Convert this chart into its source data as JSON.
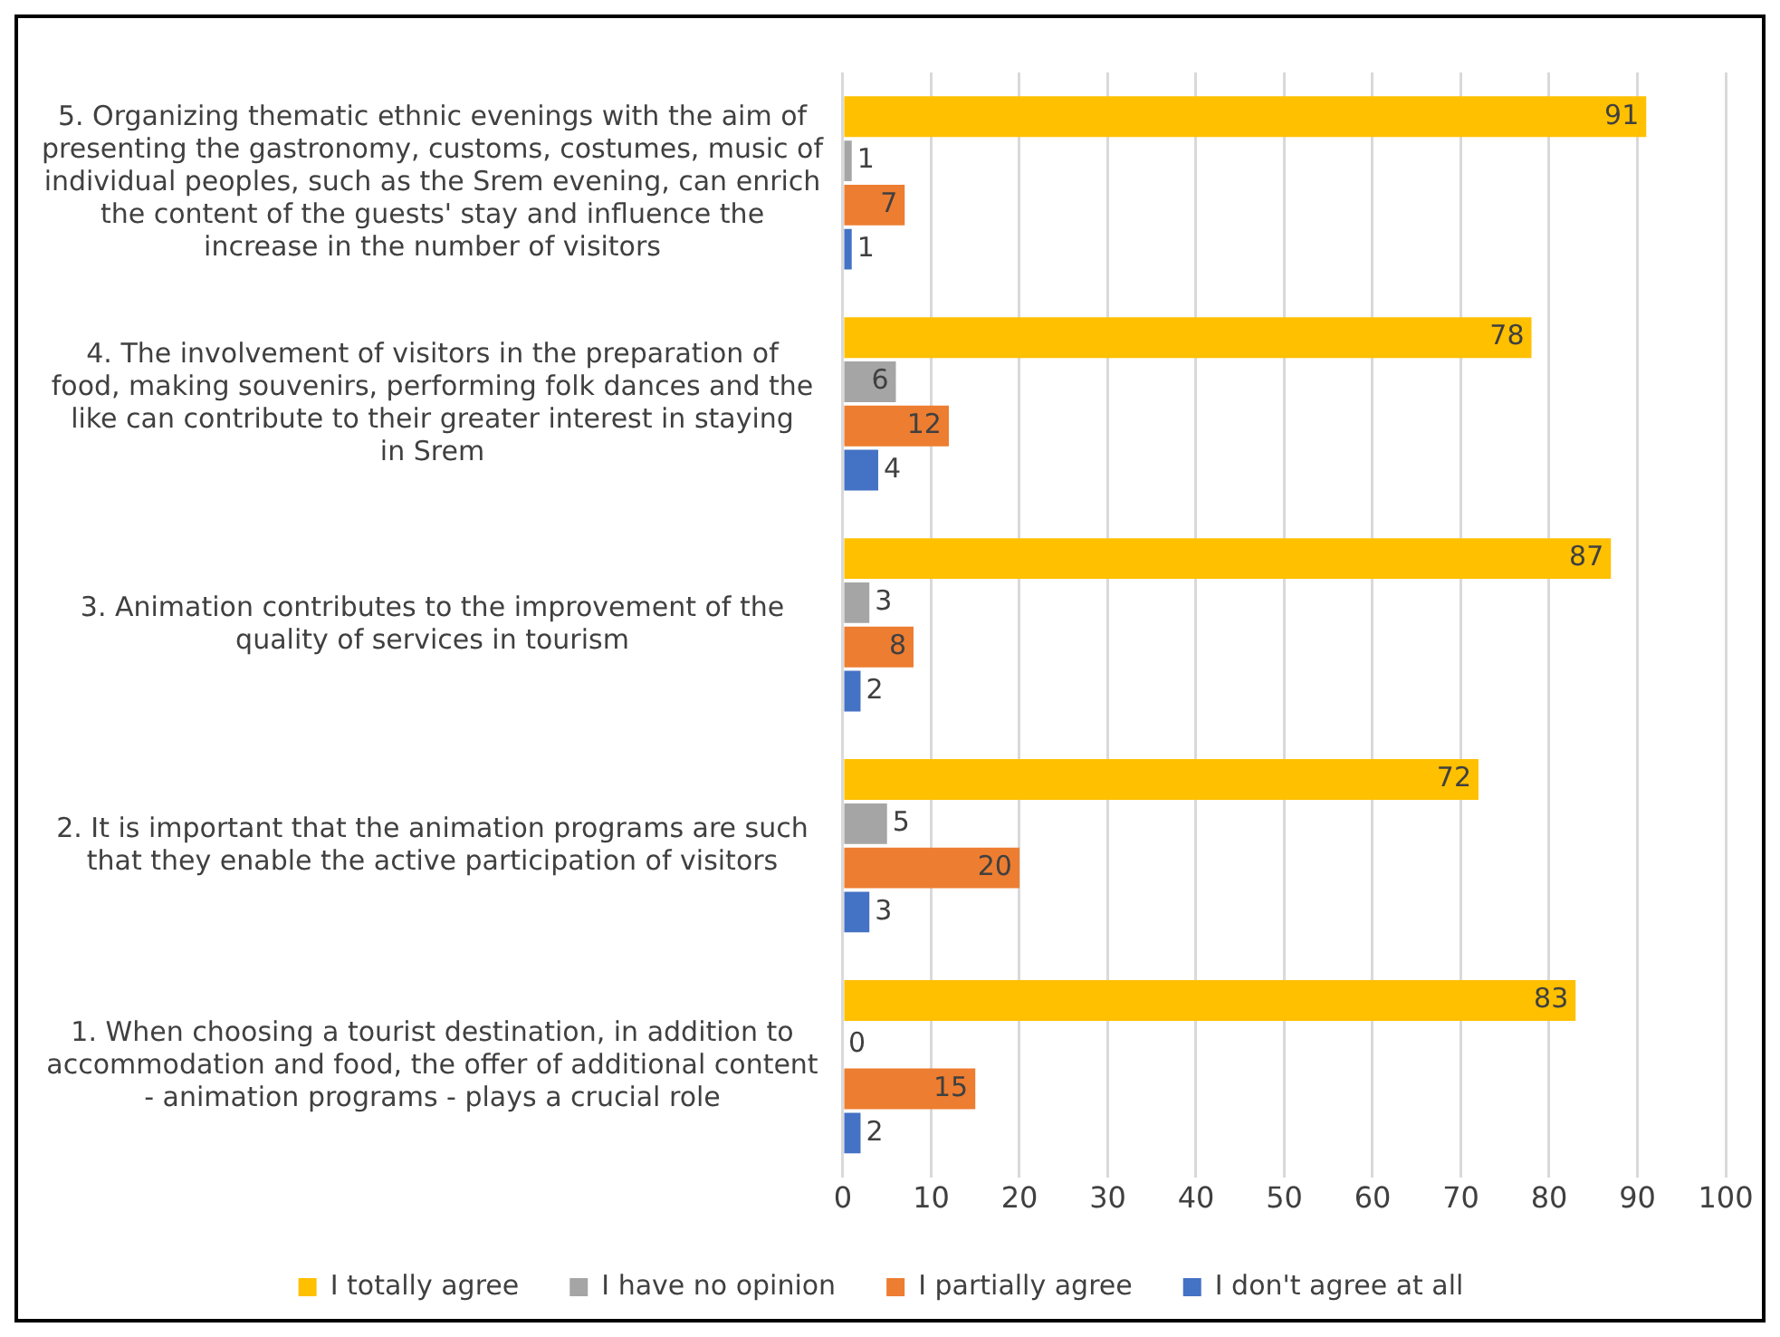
{
  "chart_data": {
    "type": "bar",
    "orientation": "horizontal",
    "categories": [
      "5. Organizing thematic ethnic evenings with the aim of presenting the gastronomy, customs, costumes, music of individual peoples, such as the Srem evening, can enrich the content of the guests' stay and influence the increase in the number of visitors",
      "4. The involvement of visitors in the preparation of food, making souvenirs, performing folk dances and the like can contribute to their greater interest in staying in Srem",
      "3. Animation contributes to the improvement of the quality of services in tourism",
      "2. It is important that the animation programs are such that they enable the active participation of visitors",
      "1. When choosing a tourist destination, in addition to accommodation and food, the offer of additional content - animation programs - plays a crucial role"
    ],
    "series": [
      {
        "name": "I totally agree",
        "color": "#ffc000",
        "values": [
          91,
          78,
          87,
          72,
          83
        ]
      },
      {
        "name": "I have no opinion",
        "color": "#a5a5a5",
        "values": [
          1,
          6,
          3,
          5,
          0
        ]
      },
      {
        "name": "I partially agree",
        "color": "#ed7d31",
        "values": [
          7,
          12,
          8,
          20,
          15
        ]
      },
      {
        "name": "I don't agree at all",
        "color": "#4472c4",
        "values": [
          1,
          4,
          2,
          3,
          2
        ]
      }
    ],
    "xlim": [
      0,
      100
    ],
    "xticks": [
      0,
      10,
      20,
      30,
      40,
      50,
      60,
      70,
      80,
      90,
      100
    ],
    "grid": "x",
    "legend": "bottom",
    "data_labels": true
  }
}
